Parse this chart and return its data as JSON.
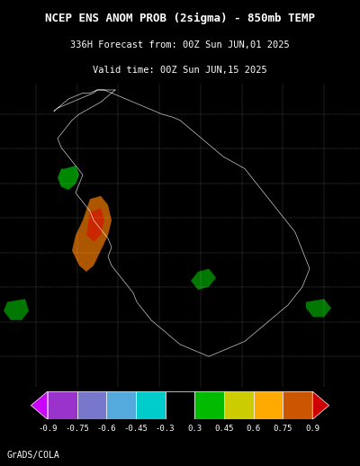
{
  "title_line1": "NCEP ENS ANOM PROB (2sigma) - 850mb TEMP",
  "title_line2": "336H Forecast from: 00Z Sun JUN,01 2025",
  "title_line3": "Valid time: 00Z Sun JUN,15 2025",
  "credit": "GrADS/COLA",
  "background_color": "#000000",
  "title_color": "#ffffff",
  "colorbar_values": [
    -0.9,
    -0.75,
    -0.6,
    -0.45,
    -0.3,
    0.3,
    0.45,
    0.6,
    0.75,
    0.9
  ],
  "colorbar_colors": [
    "#cc00cc",
    "#9900cc",
    "#6666cc",
    "#66ccff",
    "#000000",
    "#00aa00",
    "#cccc00",
    "#ffaa00",
    "#cc4400",
    "#cc0000"
  ],
  "colorbar_segment_colors": [
    "#cc00ff",
    "#9933cc",
    "#7777bb",
    "#44cccc",
    "#000000",
    "#00bb00",
    "#cccc00",
    "#ffaa00",
    "#cc6600",
    "#cc0000"
  ],
  "map_image_placeholder": true,
  "fig_width": 4.0,
  "fig_height": 5.18
}
